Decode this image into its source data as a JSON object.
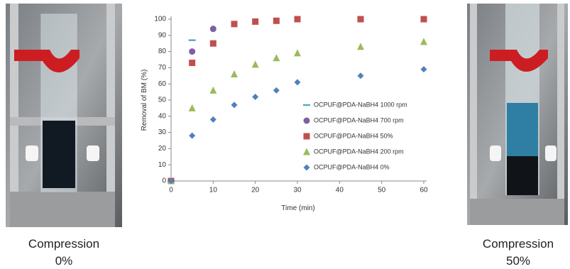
{
  "chart_data": {
    "type": "scatter",
    "x_label": "Time (min)",
    "y_label": "Removal of BM (%)",
    "xlim": [
      0,
      60
    ],
    "xticks": [
      0,
      10,
      20,
      30,
      40,
      50,
      60
    ],
    "ylim": [
      0,
      100
    ],
    "yticks": [
      0,
      10,
      20,
      30,
      40,
      50,
      60,
      70,
      80,
      90,
      100
    ],
    "series": [
      {
        "name": "OCPUF@PDA-NaBH4 1000 rpm",
        "color": "#4bacc6",
        "marker": "dash",
        "x": [
          0,
          5
        ],
        "values": [
          0,
          87
        ]
      },
      {
        "name": "OCPUF@PDA-NaBH4 700 rpm",
        "color": "#7f5fa3",
        "marker": "circle",
        "x": [
          0,
          5,
          10
        ],
        "values": [
          0,
          80,
          94
        ]
      },
      {
        "name": "OCPUF@PDA-NaBH4 50%",
        "color": "#c0504d",
        "marker": "square",
        "x": [
          0,
          5,
          10,
          15,
          20,
          25,
          30,
          45,
          60
        ],
        "values": [
          0,
          73,
          85,
          97,
          98.5,
          99,
          100,
          100,
          100
        ]
      },
      {
        "name": "OCPUF@PDA-NaBH4 200 rpm",
        "color": "#9bbb59",
        "marker": "triangle",
        "x": [
          0,
          5,
          10,
          15,
          20,
          25,
          30,
          45,
          60
        ],
        "values": [
          0,
          45,
          56,
          66,
          72,
          76,
          79,
          83,
          86
        ]
      },
      {
        "name": "OCPUF@PDA-NaBH4 0%",
        "color": "#4f81bd",
        "marker": "diamond",
        "x": [
          0,
          5,
          10,
          15,
          20,
          25,
          30,
          45,
          60
        ],
        "values": [
          0,
          28,
          38,
          47,
          52,
          56,
          61,
          65,
          69
        ]
      }
    ]
  },
  "photos": [
    {
      "caption": [
        "Compression",
        "0%"
      ]
    },
    {
      "caption": [
        "Compression",
        "50%"
      ]
    }
  ]
}
